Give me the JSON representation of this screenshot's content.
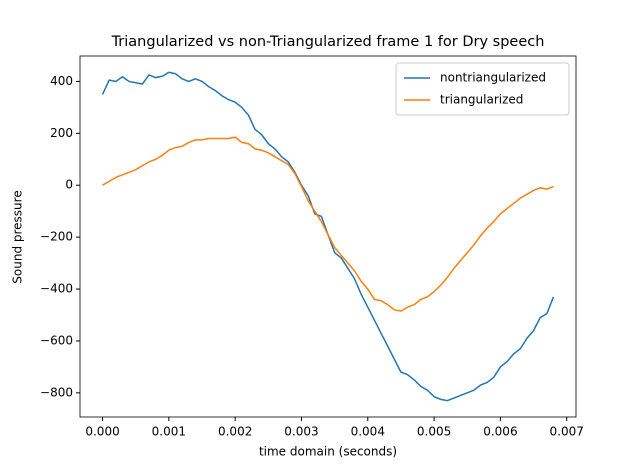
{
  "chart_data": {
    "type": "line",
    "title": "Triangularized vs non-Triangularized frame 1 for Dry speech",
    "x_label": "time domain (seconds)",
    "y_label": "Sound pressure",
    "x": [
      0,
      0.0001,
      0.0002,
      0.0003,
      0.0004,
      0.0005,
      0.0006,
      0.0007,
      0.0008,
      0.0009,
      0.001,
      0.0011,
      0.0012,
      0.0013,
      0.0014,
      0.0015,
      0.0016,
      0.0017,
      0.0018,
      0.0019,
      0.002,
      0.0021,
      0.0022,
      0.0023,
      0.0024,
      0.0025,
      0.0026,
      0.0027,
      0.0028,
      0.0029,
      0.003,
      0.0031,
      0.0032,
      0.0033,
      0.0034,
      0.0035,
      0.0036,
      0.0037,
      0.0038,
      0.0039,
      0.004,
      0.0041,
      0.0042,
      0.0043,
      0.0044,
      0.0045,
      0.0046,
      0.0047,
      0.0048,
      0.0049,
      0.005,
      0.0051,
      0.0052,
      0.0053,
      0.0054,
      0.0055,
      0.0056,
      0.0057,
      0.0058,
      0.0059,
      0.006,
      0.0061,
      0.0062,
      0.0063,
      0.0064,
      0.0065,
      0.0066,
      0.0067,
      0.0068
    ],
    "series": [
      {
        "name": "nontriangularized",
        "color": "#1f77b4",
        "values": [
          350,
          405,
          400,
          418,
          400,
          395,
          390,
          425,
          415,
          420,
          435,
          430,
          410,
          400,
          410,
          400,
          380,
          365,
          345,
          330,
          320,
          300,
          270,
          215,
          195,
          160,
          140,
          110,
          90,
          50,
          0,
          -40,
          -110,
          -120,
          -190,
          -260,
          -280,
          -320,
          -360,
          -420,
          -470,
          -520,
          -570,
          -620,
          -670,
          -720,
          -730,
          -750,
          -775,
          -790,
          -815,
          -825,
          -830,
          -820,
          -810,
          -800,
          -790,
          -770,
          -760,
          -740,
          -700,
          -680,
          -650,
          -630,
          -590,
          -560,
          -510,
          -495,
          -430
        ]
      },
      {
        "name": "triangularized",
        "color": "#ff7f0e",
        "values": [
          0,
          15,
          30,
          40,
          50,
          60,
          75,
          90,
          100,
          115,
          135,
          145,
          150,
          165,
          175,
          175,
          180,
          180,
          180,
          180,
          185,
          165,
          160,
          140,
          135,
          125,
          110,
          95,
          80,
          45,
          -5,
          -60,
          -100,
          -140,
          -190,
          -240,
          -270,
          -300,
          -330,
          -370,
          -400,
          -440,
          -445,
          -460,
          -480,
          -485,
          -470,
          -460,
          -440,
          -430,
          -410,
          -385,
          -355,
          -320,
          -290,
          -260,
          -230,
          -195,
          -165,
          -140,
          -110,
          -90,
          -70,
          -50,
          -35,
          -20,
          -10,
          -15,
          -5
        ]
      }
    ],
    "xlim": [
      -0.00034,
      0.00714
    ],
    "ylim": [
      -893,
      498
    ],
    "xticks": [
      {
        "value": 0,
        "label": "0.000"
      },
      {
        "value": 0.001,
        "label": "0.001"
      },
      {
        "value": 0.002,
        "label": "0.002"
      },
      {
        "value": 0.003,
        "label": "0.003"
      },
      {
        "value": 0.004,
        "label": "0.004"
      },
      {
        "value": 0.005,
        "label": "0.005"
      },
      {
        "value": 0.006,
        "label": "0.006"
      },
      {
        "value": 0.007,
        "label": "0.007"
      }
    ],
    "yticks": [
      {
        "value": -800,
        "label": "−800"
      },
      {
        "value": -600,
        "label": "−600"
      },
      {
        "value": -400,
        "label": "−400"
      },
      {
        "value": -200,
        "label": "−200"
      },
      0,
      200,
      400
    ],
    "legend": "upper right",
    "grid": false
  }
}
